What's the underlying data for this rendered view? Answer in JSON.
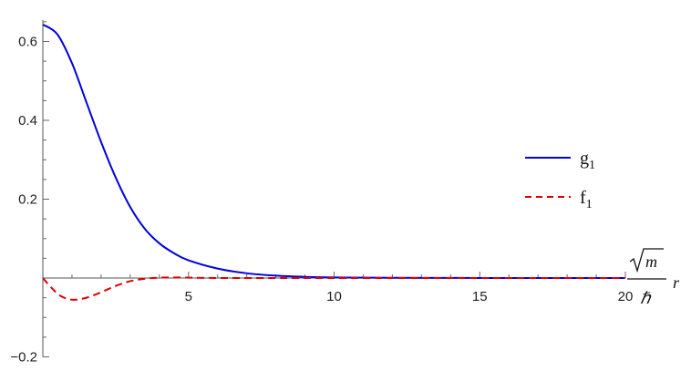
{
  "chart_data": {
    "type": "line",
    "xlim": [
      0,
      20
    ],
    "ylim": [
      -0.2,
      0.65
    ],
    "x_ticks": [
      5,
      10,
      15,
      20
    ],
    "y_ticks": [
      -0.2,
      0.2,
      0.4,
      0.6
    ],
    "x_tick_labels": [
      "5",
      "10",
      "15",
      "20"
    ],
    "y_tick_labels": [
      "−0.2",
      "0.2",
      "0.4",
      "0.6"
    ],
    "xlabel": {
      "sqrt": "m",
      "denominator": "ℏ",
      "variable": "r"
    },
    "grid": false,
    "legend_position": "right",
    "series": [
      {
        "name": "g",
        "subscript": "1",
        "color": "#0000dd",
        "style": "solid",
        "x": [
          0,
          0.5,
          1,
          1.5,
          2,
          2.5,
          3,
          3.5,
          4,
          4.5,
          5,
          6,
          7,
          8,
          9,
          10,
          12,
          14,
          16,
          18,
          20
        ],
        "y": [
          0.643,
          0.618,
          0.545,
          0.445,
          0.345,
          0.255,
          0.18,
          0.125,
          0.088,
          0.063,
          0.045,
          0.024,
          0.012,
          0.006,
          0.003,
          0.0015,
          0.0005,
          0.0002,
          0.0001,
          0.0,
          0.0
        ]
      },
      {
        "name": "f",
        "subscript": "1",
        "color": "#dd0000",
        "style": "dashed",
        "x": [
          0,
          0.3,
          0.6,
          1,
          1.5,
          2,
          2.5,
          3,
          3.5,
          4,
          4.5,
          5,
          6,
          8,
          10,
          15,
          20
        ],
        "y": [
          0,
          -0.025,
          -0.045,
          -0.055,
          -0.05,
          -0.036,
          -0.02,
          -0.008,
          -0.002,
          0.001,
          0.0015,
          0.001,
          0.0,
          0.0,
          0.0,
          0.0,
          0.0
        ]
      }
    ]
  }
}
